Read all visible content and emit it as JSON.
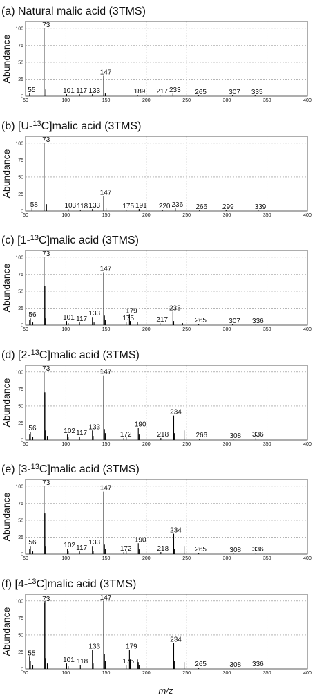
{
  "x_axis_label": "m/z",
  "chart_data": [
    {
      "type": "bar",
      "panel": "a",
      "title": {
        "pre": "(a) Natural malic acid (3TMS)",
        "sup": "",
        "post": ""
      },
      "ylabel": "Abundance",
      "xlim": [
        50,
        400
      ],
      "ylim": [
        0,
        110
      ],
      "xticks": [
        50,
        100,
        150,
        200,
        250,
        300,
        350,
        400
      ],
      "yticks": [
        0,
        25,
        50,
        75,
        100
      ],
      "grid": true,
      "peaks": [
        [
          55,
          4
        ],
        [
          73,
          100
        ],
        [
          75,
          10
        ],
        [
          101,
          3
        ],
        [
          117,
          3
        ],
        [
          133,
          3
        ],
        [
          147,
          30
        ],
        [
          149,
          4
        ],
        [
          189,
          2
        ],
        [
          217,
          2
        ],
        [
          233,
          4
        ],
        [
          265,
          1
        ],
        [
          307,
          1
        ],
        [
          335,
          1
        ]
      ],
      "labels": [
        [
          55,
          "55"
        ],
        [
          73,
          "73"
        ],
        [
          101,
          "101"
        ],
        [
          117,
          "117"
        ],
        [
          133,
          "133"
        ],
        [
          147,
          "147"
        ],
        [
          189,
          "189"
        ],
        [
          217,
          "217"
        ],
        [
          233,
          "233"
        ],
        [
          265,
          "265"
        ],
        [
          307,
          "307"
        ],
        [
          335,
          "335"
        ]
      ]
    },
    {
      "type": "bar",
      "panel": "b",
      "title": {
        "pre": "(b) [U-",
        "sup": "13",
        "post": "C]malic acid (3TMS)"
      },
      "ylabel": "Abundance",
      "xlim": [
        50,
        400
      ],
      "ylim": [
        0,
        110
      ],
      "xticks": [
        50,
        100,
        150,
        200,
        250,
        300,
        350,
        400
      ],
      "yticks": [
        0,
        25,
        50,
        75,
        100
      ],
      "grid": true,
      "peaks": [
        [
          58,
          4
        ],
        [
          73,
          100
        ],
        [
          76,
          10
        ],
        [
          103,
          3
        ],
        [
          118,
          2
        ],
        [
          133,
          3
        ],
        [
          147,
          22
        ],
        [
          150,
          4
        ],
        [
          175,
          2
        ],
        [
          191,
          3
        ],
        [
          220,
          2
        ],
        [
          236,
          4
        ],
        [
          266,
          1
        ],
        [
          299,
          1
        ],
        [
          339,
          1
        ]
      ],
      "labels": [
        [
          58,
          "58"
        ],
        [
          73,
          "73"
        ],
        [
          103,
          "103"
        ],
        [
          118,
          "118"
        ],
        [
          133,
          "133"
        ],
        [
          147,
          "147"
        ],
        [
          175,
          "175"
        ],
        [
          191,
          "191"
        ],
        [
          220,
          "220"
        ],
        [
          236,
          "236"
        ],
        [
          266,
          "266"
        ],
        [
          299,
          "299"
        ],
        [
          339,
          "339"
        ]
      ]
    },
    {
      "type": "bar",
      "panel": "c",
      "title": {
        "pre": "(c) [1-",
        "sup": "13",
        "post": "C]malic acid (3TMS)"
      },
      "ylabel": "Abundance",
      "xlim": [
        50,
        400
      ],
      "ylim": [
        0,
        110
      ],
      "xticks": [
        50,
        100,
        150,
        200,
        250,
        300,
        350,
        400
      ],
      "yticks": [
        0,
        25,
        50,
        75,
        100
      ],
      "grid": true,
      "peaks": [
        [
          55,
          8
        ],
        [
          56,
          10
        ],
        [
          59,
          4
        ],
        [
          73,
          100
        ],
        [
          74,
          58
        ],
        [
          75,
          10
        ],
        [
          101,
          6
        ],
        [
          103,
          3
        ],
        [
          117,
          4
        ],
        [
          133,
          12
        ],
        [
          135,
          4
        ],
        [
          147,
          78
        ],
        [
          148,
          14
        ],
        [
          149,
          8
        ],
        [
          175,
          5
        ],
        [
          179,
          16
        ],
        [
          180,
          6
        ],
        [
          189,
          5
        ],
        [
          217,
          3
        ],
        [
          233,
          20
        ],
        [
          234,
          6
        ],
        [
          245,
          3
        ],
        [
          265,
          2
        ],
        [
          307,
          1
        ],
        [
          336,
          1
        ]
      ],
      "labels": [
        [
          56,
          "56"
        ],
        [
          73,
          "73"
        ],
        [
          101,
          "101"
        ],
        [
          117,
          "117"
        ],
        [
          133,
          "133"
        ],
        [
          147,
          "147"
        ],
        [
          175,
          "175"
        ],
        [
          179,
          "179"
        ],
        [
          217,
          "217"
        ],
        [
          233,
          "233"
        ],
        [
          265,
          "265"
        ],
        [
          307,
          "307"
        ],
        [
          336,
          "336"
        ]
      ]
    },
    {
      "type": "bar",
      "panel": "d",
      "title": {
        "pre": "(d) [2-",
        "sup": "13",
        "post": "C]malic acid (3TMS)"
      },
      "ylabel": "Abundance",
      "xlim": [
        50,
        400
      ],
      "ylim": [
        0,
        110
      ],
      "xticks": [
        50,
        100,
        150,
        200,
        250,
        300,
        350,
        400
      ],
      "yticks": [
        0,
        25,
        50,
        75,
        100
      ],
      "grid": true,
      "peaks": [
        [
          55,
          8
        ],
        [
          56,
          12
        ],
        [
          59,
          5
        ],
        [
          73,
          100
        ],
        [
          74,
          70
        ],
        [
          75,
          14
        ],
        [
          77,
          6
        ],
        [
          102,
          8
        ],
        [
          103,
          4
        ],
        [
          117,
          5
        ],
        [
          133,
          14
        ],
        [
          134,
          6
        ],
        [
          147,
          95
        ],
        [
          148,
          16
        ],
        [
          149,
          10
        ],
        [
          172,
          3
        ],
        [
          175,
          4
        ],
        [
          190,
          18
        ],
        [
          191,
          8
        ],
        [
          218,
          3
        ],
        [
          234,
          36
        ],
        [
          235,
          10
        ],
        [
          247,
          14
        ],
        [
          266,
          2
        ],
        [
          308,
          1
        ],
        [
          336,
          3
        ]
      ],
      "labels": [
        [
          56,
          "56"
        ],
        [
          73,
          "73"
        ],
        [
          102,
          "102"
        ],
        [
          117,
          "117"
        ],
        [
          133,
          "133"
        ],
        [
          147,
          "147"
        ],
        [
          172,
          "172"
        ],
        [
          190,
          "190"
        ],
        [
          218,
          "218"
        ],
        [
          234,
          "234"
        ],
        [
          266,
          "266"
        ],
        [
          308,
          "308"
        ],
        [
          336,
          "336"
        ]
      ]
    },
    {
      "type": "bar",
      "panel": "e",
      "title": {
        "pre": "(e) [3-",
        "sup": "13",
        "post": "C]malic acid (3TMS)"
      },
      "ylabel": "Abundance",
      "xlim": [
        50,
        400
      ],
      "ylim": [
        0,
        110
      ],
      "xticks": [
        50,
        100,
        150,
        200,
        250,
        300,
        350,
        400
      ],
      "yticks": [
        0,
        25,
        50,
        75,
        100
      ],
      "grid": true,
      "peaks": [
        [
          55,
          8
        ],
        [
          56,
          12
        ],
        [
          59,
          4
        ],
        [
          73,
          100
        ],
        [
          74,
          60
        ],
        [
          75,
          12
        ],
        [
          102,
          8
        ],
        [
          103,
          4
        ],
        [
          117,
          4
        ],
        [
          133,
          12
        ],
        [
          134,
          5
        ],
        [
          147,
          92
        ],
        [
          148,
          14
        ],
        [
          149,
          8
        ],
        [
          172,
          3
        ],
        [
          175,
          4
        ],
        [
          190,
          16
        ],
        [
          191,
          7
        ],
        [
          218,
          3
        ],
        [
          234,
          30
        ],
        [
          235,
          8
        ],
        [
          247,
          12
        ],
        [
          265,
          2
        ],
        [
          308,
          1
        ],
        [
          336,
          2
        ]
      ],
      "labels": [
        [
          56,
          "56"
        ],
        [
          73,
          "73"
        ],
        [
          102,
          "102"
        ],
        [
          117,
          "117"
        ],
        [
          133,
          "133"
        ],
        [
          147,
          "147"
        ],
        [
          172,
          "172"
        ],
        [
          190,
          "190"
        ],
        [
          218,
          "218"
        ],
        [
          234,
          "234"
        ],
        [
          265,
          "265"
        ],
        [
          308,
          "308"
        ],
        [
          336,
          "336"
        ]
      ]
    },
    {
      "type": "bar",
      "panel": "f",
      "title": {
        "pre": "(f) [4-",
        "sup": "13",
        "post": "C]malic acid (3TMS)"
      },
      "ylabel": "Abundance",
      "xlim": [
        50,
        400
      ],
      "ylim": [
        0,
        110
      ],
      "xticks": [
        50,
        100,
        150,
        200,
        250,
        300,
        350,
        400
      ],
      "yticks": [
        0,
        25,
        50,
        75,
        100
      ],
      "grid": true,
      "peaks": [
        [
          55,
          18
        ],
        [
          56,
          12
        ],
        [
          59,
          6
        ],
        [
          73,
          98
        ],
        [
          74,
          100
        ],
        [
          75,
          16
        ],
        [
          77,
          8
        ],
        [
          101,
          8
        ],
        [
          103,
          4
        ],
        [
          118,
          6
        ],
        [
          133,
          28
        ],
        [
          134,
          8
        ],
        [
          147,
          100
        ],
        [
          148,
          22
        ],
        [
          149,
          12
        ],
        [
          175,
          6
        ],
        [
          179,
          28
        ],
        [
          180,
          14
        ],
        [
          189,
          14
        ],
        [
          190,
          10
        ],
        [
          191,
          6
        ],
        [
          234,
          38
        ],
        [
          235,
          12
        ],
        [
          247,
          10
        ],
        [
          265,
          2
        ],
        [
          308,
          1
        ],
        [
          336,
          2
        ]
      ],
      "labels": [
        [
          55,
          "55"
        ],
        [
          73,
          "73"
        ],
        [
          101,
          "101"
        ],
        [
          118,
          "118"
        ],
        [
          133,
          "133"
        ],
        [
          147,
          "147"
        ],
        [
          175,
          "175"
        ],
        [
          179,
          "179"
        ],
        [
          234,
          "234"
        ],
        [
          265,
          "265"
        ],
        [
          308,
          "308"
        ],
        [
          336,
          "336"
        ]
      ]
    }
  ]
}
